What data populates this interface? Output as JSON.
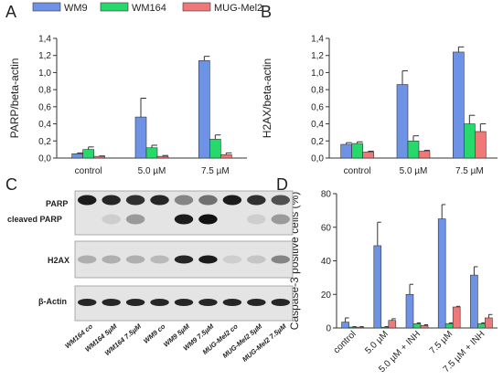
{
  "panel_letters": {
    "A": "A",
    "B": "B",
    "C": "C",
    "D": "D"
  },
  "colors": {
    "wm9": "#6e93e6",
    "wm164": "#27d86a",
    "mugmel2": "#f07878"
  },
  "legend": [
    "WM9",
    "WM164",
    "MUG-Mel2"
  ],
  "blot": {
    "labels": {
      "parp": "PARP",
      "cleaved": "cleaved PARP",
      "h2ax": "H2AX",
      "actin": "β-Actin"
    },
    "lanes": [
      "WM164 co",
      "WM164 5µM",
      "WM164 7.5µM",
      "WM9 co",
      "WM9 5µM",
      "WM9 7.5µM",
      "MUG-Mel2 co",
      "MUG-Mel2 5µM",
      "MUG-Mel2 7.5µM"
    ]
  },
  "chart_data": [
    {
      "id": "A",
      "type": "bar",
      "ylabel": "PARP/beta-actin",
      "categories": [
        "control",
        "5.0 µM",
        "7.5 µM"
      ],
      "ylim": [
        0,
        1.4
      ],
      "yticks": [
        "0,0",
        "0,2",
        "0,4",
        "0,6",
        "0,8",
        "1,0",
        "1,2",
        "1,4"
      ],
      "series": [
        {
          "name": "WM9",
          "values": [
            0.05,
            0.48,
            1.14
          ],
          "errors": [
            0.01,
            0.22,
            0.05
          ]
        },
        {
          "name": "WM164",
          "values": [
            0.1,
            0.12,
            0.22
          ],
          "errors": [
            0.03,
            0.03,
            0.05
          ]
        },
        {
          "name": "MUG-Mel2",
          "values": [
            0.02,
            0.02,
            0.04
          ],
          "errors": [
            0.005,
            0.01,
            0.02
          ]
        }
      ]
    },
    {
      "id": "B",
      "type": "bar",
      "ylabel": "H2AX/beta-actin",
      "categories": [
        "control",
        "5.0 µM",
        "7.5 µM"
      ],
      "ylim": [
        0,
        1.4
      ],
      "yticks": [
        "0,0",
        "0,2",
        "0,4",
        "0,6",
        "0,8",
        "1,0",
        "1,2",
        "1,4"
      ],
      "series": [
        {
          "name": "WM9",
          "values": [
            0.16,
            0.86,
            1.24
          ],
          "errors": [
            0.02,
            0.16,
            0.06
          ]
        },
        {
          "name": "WM164",
          "values": [
            0.17,
            0.2,
            0.4
          ],
          "errors": [
            0.02,
            0.06,
            0.1
          ]
        },
        {
          "name": "MUG-Mel2",
          "values": [
            0.07,
            0.08,
            0.31
          ],
          "errors": [
            0.01,
            0.01,
            0.09
          ]
        }
      ]
    },
    {
      "id": "D",
      "type": "bar",
      "ylabel": "Caspase-3 positive cells (%)",
      "categories": [
        "control",
        "5.0 µM",
        "5.0 µM + INH",
        "7.5 µM",
        "7.5 µM + INH"
      ],
      "ylim": [
        0,
        80
      ],
      "yticks": [
        "0",
        "20",
        "40",
        "60",
        "80"
      ],
      "series": [
        {
          "name": "WM9",
          "values": [
            3.5,
            49,
            20,
            65,
            31.5
          ],
          "errors": [
            2.5,
            14,
            6,
            8.5,
            5
          ]
        },
        {
          "name": "WM164",
          "values": [
            0.5,
            0.5,
            2.5,
            2.5,
            2.5
          ],
          "errors": [
            0.3,
            0.3,
            0.5,
            0.5,
            0.5
          ]
        },
        {
          "name": "MUG-Mel2",
          "values": [
            0.5,
            4.5,
            1.5,
            12.5,
            6
          ],
          "errors": [
            0.3,
            1,
            0.4,
            0.4,
            2
          ]
        }
      ]
    }
  ]
}
